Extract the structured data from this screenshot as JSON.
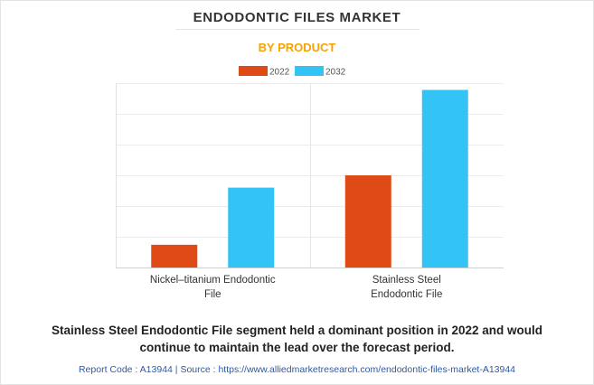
{
  "header": {
    "title": "ENDODONTIC FILES MARKET",
    "subtitle": "BY PRODUCT"
  },
  "chart_data": {
    "type": "bar",
    "title": "ENDODONTIC FILES MARKET",
    "subtitle": "BY PRODUCT",
    "categories": [
      "Nickel–titanium Endodontic File",
      "Stainless Steel Endodontic File"
    ],
    "category_lines": [
      [
        "Nickel–titanium Endodontic",
        "File"
      ],
      [
        "Stainless Steel",
        "Endodontic File"
      ]
    ],
    "series": [
      {
        "name": "2022",
        "color": "#e04a16",
        "values": [
          0.74,
          3.0
        ]
      },
      {
        "name": "2032",
        "color": "#33c4f5",
        "values": [
          2.6,
          5.78
        ]
      }
    ],
    "ylim": [
      0,
      6
    ],
    "gridlines": 6,
    "xlabel": "",
    "ylabel": "",
    "legend_position": "top-center",
    "grid": true
  },
  "caption": {
    "line1": "Stainless Steel Endodontic File segment held a dominant position in 2022 and would",
    "line2": "continue to maintain the lead over the forecast period."
  },
  "footer": {
    "text": "Report Code : A13944  |  Source : https://www.alliedmarketresearch.com/endodontic-files-market-A13944"
  }
}
